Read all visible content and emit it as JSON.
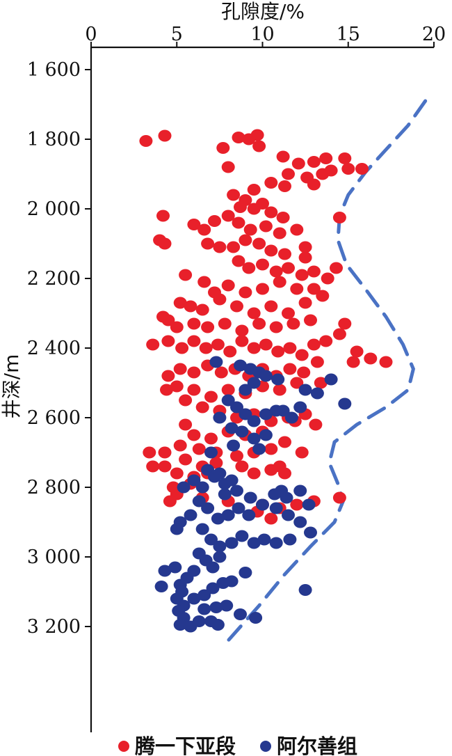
{
  "chart_data": {
    "type": "scatter",
    "xlabel": "孔隙度/%",
    "ylabel": "井深/m",
    "x_axis_position": "top",
    "y_axis_inverted": true,
    "xlim": [
      0,
      20
    ],
    "ylim": [
      1600,
      3300
    ],
    "x_ticks": [
      0,
      5,
      10,
      15,
      20
    ],
    "x_tick_labels": [
      "0",
      "5",
      "10",
      "15",
      "20"
    ],
    "y_ticks": [
      1600,
      1800,
      2000,
      2200,
      2400,
      2600,
      2800,
      3000,
      3200
    ],
    "y_tick_labels": [
      "1 600",
      "1 800",
      "2 000",
      "2 200",
      "2 400",
      "2 600",
      "2 800",
      "3 000",
      "3 200"
    ],
    "grid": false,
    "legend_position": "bottom",
    "series": [
      {
        "name": "腾一下亚段",
        "color": "#e8202a",
        "points": [
          [
            3.2,
            1805
          ],
          [
            4.3,
            1790
          ],
          [
            7.7,
            1825
          ],
          [
            8.6,
            1795
          ],
          [
            9.7,
            1788
          ],
          [
            9.2,
            1800
          ],
          [
            9.8,
            1820
          ],
          [
            11.2,
            1850
          ],
          [
            12.1,
            1870
          ],
          [
            13.0,
            1865
          ],
          [
            13.7,
            1855
          ],
          [
            14.0,
            1890
          ],
          [
            14.8,
            1855
          ],
          [
            15.0,
            1885
          ],
          [
            15.8,
            1885
          ],
          [
            11.5,
            1900
          ],
          [
            12.6,
            1910
          ],
          [
            13.5,
            1900
          ],
          [
            13.0,
            1930
          ],
          [
            8.0,
            1880
          ],
          [
            10.5,
            1925
          ],
          [
            11.3,
            1935
          ],
          [
            9.5,
            1945
          ],
          [
            8.3,
            1960
          ],
          [
            9.0,
            1975
          ],
          [
            10.0,
            1985
          ],
          [
            8.7,
            1995
          ],
          [
            9.5,
            2000
          ],
          [
            10.5,
            2010
          ],
          [
            11.2,
            2025
          ],
          [
            8.0,
            2020
          ],
          [
            8.6,
            2040
          ],
          [
            9.3,
            2060
          ],
          [
            10.2,
            2050
          ],
          [
            11.0,
            2070
          ],
          [
            12.0,
            2060
          ],
          [
            9.0,
            2090
          ],
          [
            9.8,
            2100
          ],
          [
            8.3,
            2110
          ],
          [
            10.5,
            2120
          ],
          [
            11.3,
            2130
          ],
          [
            12.5,
            2110
          ],
          [
            4.2,
            2020
          ],
          [
            4.0,
            2090
          ],
          [
            4.3,
            2100
          ],
          [
            6.0,
            2045
          ],
          [
            6.6,
            2060
          ],
          [
            7.2,
            2035
          ],
          [
            6.8,
            2100
          ],
          [
            7.5,
            2110
          ],
          [
            14.5,
            2025
          ],
          [
            8.6,
            2150
          ],
          [
            9.2,
            2170
          ],
          [
            10.0,
            2160
          ],
          [
            10.8,
            2180
          ],
          [
            11.5,
            2170
          ],
          [
            12.3,
            2190
          ],
          [
            13.0,
            2180
          ],
          [
            13.8,
            2200
          ],
          [
            14.3,
            2170
          ],
          [
            12.5,
            2140
          ],
          [
            13.0,
            2230
          ],
          [
            12.0,
            2230
          ],
          [
            11.0,
            2210
          ],
          [
            10.0,
            2230
          ],
          [
            9.0,
            2240
          ],
          [
            8.0,
            2220
          ],
          [
            7.2,
            2240
          ],
          [
            6.6,
            2210
          ],
          [
            5.5,
            2190
          ],
          [
            7.5,
            2260
          ],
          [
            6.5,
            2290
          ],
          [
            5.2,
            2270
          ],
          [
            5.8,
            2280
          ],
          [
            8.5,
            2280
          ],
          [
            9.5,
            2300
          ],
          [
            10.5,
            2280
          ],
          [
            11.5,
            2300
          ],
          [
            12.5,
            2270
          ],
          [
            13.5,
            2250
          ],
          [
            12.8,
            2320
          ],
          [
            11.8,
            2330
          ],
          [
            10.8,
            2340
          ],
          [
            9.8,
            2330
          ],
          [
            8.8,
            2350
          ],
          [
            7.8,
            2330
          ],
          [
            6.8,
            2340
          ],
          [
            6.0,
            2330
          ],
          [
            5.0,
            2340
          ],
          [
            4.2,
            2310
          ],
          [
            4.5,
            2320
          ],
          [
            3.6,
            2390
          ],
          [
            4.5,
            2380
          ],
          [
            5.3,
            2400
          ],
          [
            6.0,
            2380
          ],
          [
            6.7,
            2400
          ],
          [
            7.4,
            2390
          ],
          [
            8.1,
            2410
          ],
          [
            8.8,
            2380
          ],
          [
            9.5,
            2400
          ],
          [
            10.2,
            2390
          ],
          [
            10.9,
            2410
          ],
          [
            11.6,
            2400
          ],
          [
            12.3,
            2420
          ],
          [
            13.0,
            2390
          ],
          [
            13.7,
            2380
          ],
          [
            14.5,
            2360
          ],
          [
            14.8,
            2330
          ],
          [
            15.5,
            2410
          ],
          [
            16.3,
            2430
          ],
          [
            17.2,
            2440
          ],
          [
            15.3,
            2440
          ],
          [
            5.2,
            2460
          ],
          [
            6.0,
            2470
          ],
          [
            6.8,
            2450
          ],
          [
            7.6,
            2470
          ],
          [
            8.4,
            2460
          ],
          [
            9.2,
            2480
          ],
          [
            10.0,
            2460
          ],
          [
            10.8,
            2480
          ],
          [
            11.6,
            2460
          ],
          [
            12.4,
            2470
          ],
          [
            13.2,
            2440
          ],
          [
            13.4,
            2500
          ],
          [
            12.0,
            2500
          ],
          [
            11.0,
            2520
          ],
          [
            10.0,
            2510
          ],
          [
            9.0,
            2530
          ],
          [
            8.0,
            2520
          ],
          [
            7.0,
            2540
          ],
          [
            6.0,
            2520
          ],
          [
            5.0,
            2510
          ],
          [
            4.5,
            2480
          ],
          [
            4.4,
            2520
          ],
          [
            5.5,
            2550
          ],
          [
            6.5,
            2570
          ],
          [
            7.5,
            2580
          ],
          [
            8.5,
            2600
          ],
          [
            9.5,
            2590
          ],
          [
            10.5,
            2610
          ],
          [
            11.5,
            2600
          ],
          [
            12.5,
            2590
          ],
          [
            10.0,
            2640
          ],
          [
            9.0,
            2650
          ],
          [
            8.0,
            2640
          ],
          [
            7.0,
            2660
          ],
          [
            6.0,
            2650
          ],
          [
            5.5,
            2620
          ],
          [
            5.2,
            2680
          ],
          [
            6.3,
            2690
          ],
          [
            7.3,
            2700
          ],
          [
            8.5,
            2710
          ],
          [
            9.5,
            2700
          ],
          [
            10.5,
            2690
          ],
          [
            11.3,
            2670
          ],
          [
            12.3,
            2700
          ],
          [
            13.1,
            2620
          ],
          [
            11.9,
            2610
          ],
          [
            5.5,
            2720
          ],
          [
            6.5,
            2740
          ],
          [
            7.3,
            2730
          ],
          [
            8.8,
            2740
          ],
          [
            9.5,
            2760
          ],
          [
            10.5,
            2750
          ],
          [
            11.3,
            2760
          ],
          [
            11.0,
            2740
          ],
          [
            4.3,
            2740
          ],
          [
            5.0,
            2760
          ],
          [
            6.0,
            2770
          ],
          [
            6.8,
            2760
          ],
          [
            5.8,
            2790
          ],
          [
            4.8,
            2800
          ],
          [
            4.3,
            2700
          ],
          [
            3.4,
            2700
          ],
          [
            3.6,
            2740
          ],
          [
            5.0,
            2820
          ],
          [
            4.6,
            2840
          ],
          [
            6.5,
            2830
          ],
          [
            8.0,
            2840
          ],
          [
            10.0,
            2850
          ],
          [
            11.0,
            2860
          ],
          [
            12.0,
            2850
          ],
          [
            13.0,
            2840
          ],
          [
            14.5,
            2830
          ],
          [
            10.5,
            2890
          ],
          [
            9.7,
            2870
          ]
        ]
      },
      {
        "name": "阿尔善组",
        "color": "#25388f",
        "points": [
          [
            7.3,
            2440
          ],
          [
            8.7,
            2450
          ],
          [
            9.3,
            2460
          ],
          [
            9.8,
            2470
          ],
          [
            10.2,
            2480
          ],
          [
            10.9,
            2490
          ],
          [
            9.5,
            2500
          ],
          [
            9.0,
            2520
          ],
          [
            12.5,
            2520
          ],
          [
            13.2,
            2530
          ],
          [
            14.0,
            2490
          ],
          [
            14.8,
            2560
          ],
          [
            12.2,
            2570
          ],
          [
            11.7,
            2600
          ],
          [
            11.2,
            2580
          ],
          [
            10.8,
            2580
          ],
          [
            10.2,
            2590
          ],
          [
            9.5,
            2610
          ],
          [
            9.0,
            2590
          ],
          [
            8.5,
            2570
          ],
          [
            8.0,
            2550
          ],
          [
            7.5,
            2600
          ],
          [
            8.2,
            2630
          ],
          [
            8.8,
            2640
          ],
          [
            9.5,
            2660
          ],
          [
            10.2,
            2650
          ],
          [
            8.3,
            2680
          ],
          [
            9.8,
            2690
          ],
          [
            7.0,
            2700
          ],
          [
            6.8,
            2750
          ],
          [
            7.2,
            2770
          ],
          [
            7.8,
            2790
          ],
          [
            8.5,
            2810
          ],
          [
            9.3,
            2830
          ],
          [
            10.0,
            2850
          ],
          [
            10.8,
            2860
          ],
          [
            11.5,
            2880
          ],
          [
            12.2,
            2900
          ],
          [
            12.8,
            2930
          ],
          [
            9.2,
            2880
          ],
          [
            8.6,
            2860
          ],
          [
            8.0,
            2880
          ],
          [
            7.4,
            2890
          ],
          [
            6.8,
            2860
          ],
          [
            6.3,
            2840
          ],
          [
            5.8,
            2880
          ],
          [
            5.2,
            2900
          ],
          [
            5.0,
            2920
          ],
          [
            6.5,
            2920
          ],
          [
            7.0,
            2950
          ],
          [
            7.5,
            2970
          ],
          [
            8.2,
            2960
          ],
          [
            8.8,
            2940
          ],
          [
            9.5,
            2960
          ],
          [
            10.1,
            2950
          ],
          [
            10.8,
            2960
          ],
          [
            11.6,
            2950
          ],
          [
            12.2,
            2810
          ],
          [
            11.4,
            2830
          ],
          [
            10.7,
            2820
          ],
          [
            11.1,
            2810
          ],
          [
            12.7,
            2850
          ],
          [
            5.4,
            2800
          ],
          [
            6.0,
            2780
          ],
          [
            6.5,
            2800
          ],
          [
            7.5,
            2760
          ],
          [
            7.8,
            2820
          ],
          [
            8.2,
            2780
          ],
          [
            6.3,
            2990
          ],
          [
            6.7,
            3010
          ],
          [
            7.1,
            3030
          ],
          [
            7.5,
            3000
          ],
          [
            6.0,
            3040
          ],
          [
            5.6,
            3060
          ],
          [
            5.2,
            3080
          ],
          [
            4.9,
            3030
          ],
          [
            4.3,
            3040
          ],
          [
            4.1,
            3085
          ],
          [
            5.3,
            3100
          ],
          [
            5.0,
            3120
          ],
          [
            5.4,
            3140
          ],
          [
            6.0,
            3120
          ],
          [
            6.6,
            3110
          ],
          [
            7.1,
            3090
          ],
          [
            7.7,
            3075
          ],
          [
            8.2,
            3070
          ],
          [
            9.0,
            3045
          ],
          [
            12.5,
            3095
          ],
          [
            5.1,
            3155
          ],
          [
            5.4,
            3175
          ],
          [
            5.2,
            3195
          ],
          [
            5.8,
            3200
          ],
          [
            6.3,
            3185
          ],
          [
            7.0,
            3185
          ],
          [
            7.4,
            3195
          ],
          [
            6.6,
            3150
          ],
          [
            7.3,
            3145
          ],
          [
            7.9,
            3140
          ],
          [
            8.7,
            3165
          ],
          [
            9.6,
            3175
          ]
        ]
      },
      {
        "name": "",
        "type": "line",
        "style": "dashed",
        "color": "#4a72c4",
        "points": [
          [
            19.5,
            1690
          ],
          [
            18.5,
            1760
          ],
          [
            17.2,
            1830
          ],
          [
            16.0,
            1895
          ],
          [
            15.0,
            1960
          ],
          [
            14.5,
            2020
          ],
          [
            14.4,
            2090
          ],
          [
            14.9,
            2160
          ],
          [
            16.0,
            2230
          ],
          [
            17.2,
            2310
          ],
          [
            18.2,
            2390
          ],
          [
            18.8,
            2460
          ],
          [
            18.5,
            2520
          ],
          [
            17.2,
            2570
          ],
          [
            15.5,
            2620
          ],
          [
            14.2,
            2670
          ],
          [
            13.9,
            2730
          ],
          [
            14.4,
            2790
          ],
          [
            14.7,
            2840
          ],
          [
            14.2,
            2900
          ],
          [
            12.8,
            2970
          ],
          [
            11.3,
            3050
          ],
          [
            9.8,
            3140
          ],
          [
            8.0,
            3240
          ]
        ]
      }
    ]
  }
}
